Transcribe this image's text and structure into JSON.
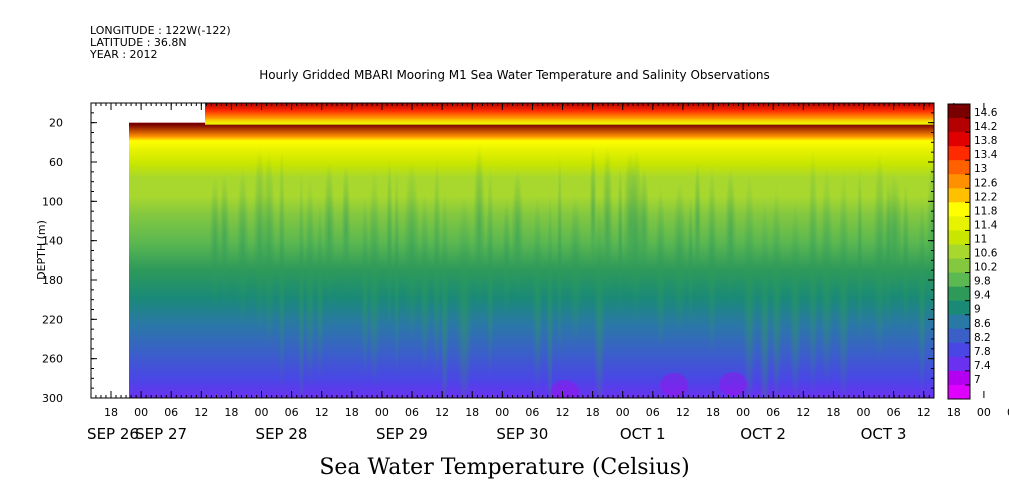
{
  "header": {
    "longitude": "LONGITUDE : 122W(-122)",
    "latitude": "LATITUDE : 36.8N",
    "year": "YEAR : 2012"
  },
  "chart_data": {
    "type": "heatmap",
    "title": "Hourly Gridded MBARI Mooring M1 Sea Water Temperature and Salinity Observations",
    "variable_label": "Sea Water Temperature (Celsius)",
    "ylabel": "DEPTH (m)",
    "y_axis": {
      "range": [
        0,
        300
      ],
      "inverted": true,
      "ticks": [
        20,
        60,
        100,
        140,
        180,
        220,
        260,
        300
      ]
    },
    "x_axis": {
      "hour_ticks": [
        "18",
        "00",
        "06",
        "12",
        "18",
        "00",
        "06",
        "12",
        "18",
        "00",
        "06",
        "12",
        "18",
        "00",
        "06",
        "12",
        "18",
        "00",
        "06",
        "12",
        "18",
        "00",
        "06",
        "12",
        "18",
        "00",
        "06",
        "12",
        "18",
        "00",
        "06",
        "12"
      ],
      "hour_ticks_start": "2012-09-26T18:00",
      "tick_step_hours": 6,
      "day_labels": [
        {
          "label": "SEP 26",
          "date": "2012-09-26"
        },
        {
          "label": "SEP 27",
          "date": "2012-09-27"
        },
        {
          "label": "SEP 28",
          "date": "2012-09-28"
        },
        {
          "label": "SEP 29",
          "date": "2012-09-29"
        },
        {
          "label": "SEP 30",
          "date": "2012-09-30"
        },
        {
          "label": "OCT  1",
          "date": "2012-10-01"
        },
        {
          "label": "OCT  2",
          "date": "2012-10-02"
        },
        {
          "label": "OCT  3",
          "date": "2012-10-03"
        }
      ]
    },
    "colorbar": {
      "levels": [
        "14.6",
        "14.2",
        "13.8",
        "13.4",
        "13",
        "12.6",
        "12.2",
        "11.8",
        "11.4",
        "11",
        "10.6",
        "10.2",
        "9.8",
        "9.4",
        "9",
        "8.6",
        "8.2",
        "7.8",
        "7.4",
        "7"
      ],
      "colors": [
        "#7a0000",
        "#b40000",
        "#e00000",
        "#ff2a00",
        "#ff6000",
        "#ff9000",
        "#ffc000",
        "#ffff00",
        "#e6f200",
        "#c8e600",
        "#a8d82e",
        "#84c840",
        "#5cb850",
        "#2e9a5a",
        "#1a8a76",
        "#2a78a6",
        "#3a60c8",
        "#4a46e6",
        "#6a32f0",
        "#b400f0",
        "#e000ff"
      ]
    },
    "temperature_profile": {
      "depths": [
        2,
        15,
        20,
        30,
        45,
        60,
        80,
        100,
        130,
        160,
        190,
        220,
        250,
        280,
        300
      ],
      "values_celsius": [
        14.6,
        12.8,
        12.0,
        11.6,
        11.2,
        10.9,
        10.6,
        10.3,
        10.0,
        9.6,
        9.2,
        8.7,
        8.2,
        7.8,
        7.5
      ]
    }
  }
}
